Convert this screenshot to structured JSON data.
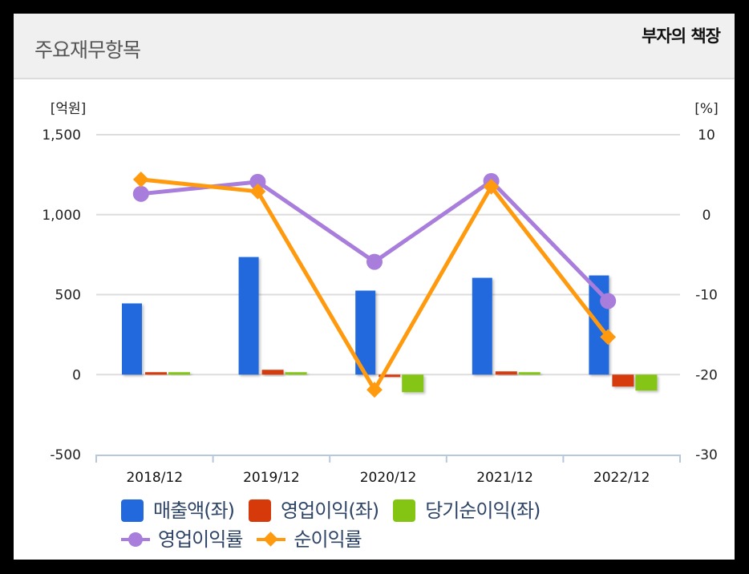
{
  "header": {
    "title": "주요재무항목",
    "watermark": "부자의 책장"
  },
  "colors": {
    "revenue": "#2169dd",
    "operating_profit": "#d63a0a",
    "net_income": "#84c514",
    "operating_margin": "#a87ddb",
    "net_margin": "#ff9a0e",
    "grid": "#dddddd",
    "axis": "#b8c8dc"
  },
  "chart_data": {
    "type": "bar",
    "title": "주요재무항목",
    "categories": [
      "2018/12",
      "2019/12",
      "2020/12",
      "2021/12",
      "2022/12"
    ],
    "left_axis": {
      "label": "[억원]",
      "ticks": [
        "1,500",
        "1,000",
        "500",
        "0",
        "-500"
      ],
      "range": [
        -500,
        1500
      ]
    },
    "right_axis": {
      "label": "[%]",
      "ticks": [
        "10",
        "0",
        "-10",
        "-20",
        "-30"
      ],
      "range": [
        -30,
        10
      ]
    },
    "series": [
      {
        "name": "매출액(좌)",
        "type": "bar",
        "axis": "left",
        "values": [
          445,
          735,
          525,
          605,
          620
        ]
      },
      {
        "name": "영업이익(좌)",
        "type": "bar",
        "axis": "left",
        "values": [
          8,
          30,
          -15,
          20,
          -75
        ]
      },
      {
        "name": "당기순이익(좌)",
        "type": "bar",
        "axis": "left",
        "values": [
          15,
          15,
          -110,
          15,
          -100
        ]
      },
      {
        "name": "영업이익률",
        "type": "line",
        "marker": "circle",
        "axis": "right",
        "values": [
          2.6,
          4.1,
          -5.9,
          4.2,
          -10.8
        ]
      },
      {
        "name": "순이익률",
        "type": "line",
        "marker": "diamond",
        "axis": "right",
        "values": [
          4.4,
          2.9,
          -21.9,
          3.5,
          -15.3
        ]
      }
    ],
    "grid": true,
    "legend_position": "bottom"
  },
  "legend": {
    "items": [
      {
        "label": "매출액(좌)"
      },
      {
        "label": "영업이익(좌)"
      },
      {
        "label": "당기순이익(좌)"
      },
      {
        "label": "영업이익률"
      },
      {
        "label": "순이익률"
      }
    ]
  }
}
